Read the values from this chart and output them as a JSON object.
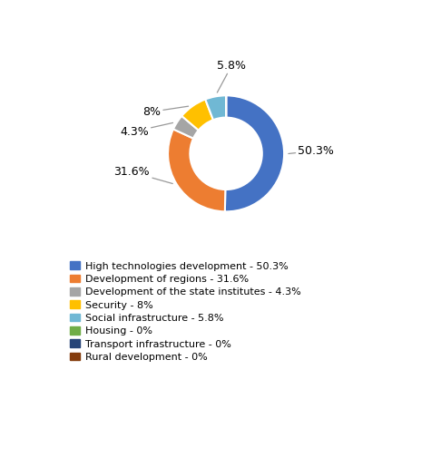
{
  "slices": [
    {
      "label": "High technologies development - 50.3%",
      "value": 50.3,
      "color": "#4472C4",
      "pct_label": "50.3%"
    },
    {
      "label": "Development of regions - 31.6%",
      "value": 31.6,
      "color": "#ED7D31",
      "pct_label": "31.6%"
    },
    {
      "label": "Development of the state institutes - 4.3%",
      "value": 4.3,
      "color": "#A5A5A5",
      "pct_label": "4.3%"
    },
    {
      "label": "Security - 8%",
      "value": 8.0,
      "color": "#FFC000",
      "pct_label": "8%"
    },
    {
      "label": "Social infrastructure - 5.8%",
      "value": 5.8,
      "color": "#70B8D4",
      "pct_label": "5.8%"
    },
    {
      "label": "Housing - 0%",
      "value": 0.0001,
      "color": "#70AD47",
      "pct_label": ""
    },
    {
      "label": "Transport infrastructure - 0%",
      "value": 0.0001,
      "color": "#264478",
      "pct_label": ""
    },
    {
      "label": "Rural development - 0%",
      "value": 0.0001,
      "color": "#843C0C",
      "pct_label": ""
    }
  ],
  "donut_width": 0.38,
  "figsize": [
    4.86,
    5.04
  ],
  "dpi": 100,
  "label_fontsize": 9,
  "legend_fontsize": 8
}
